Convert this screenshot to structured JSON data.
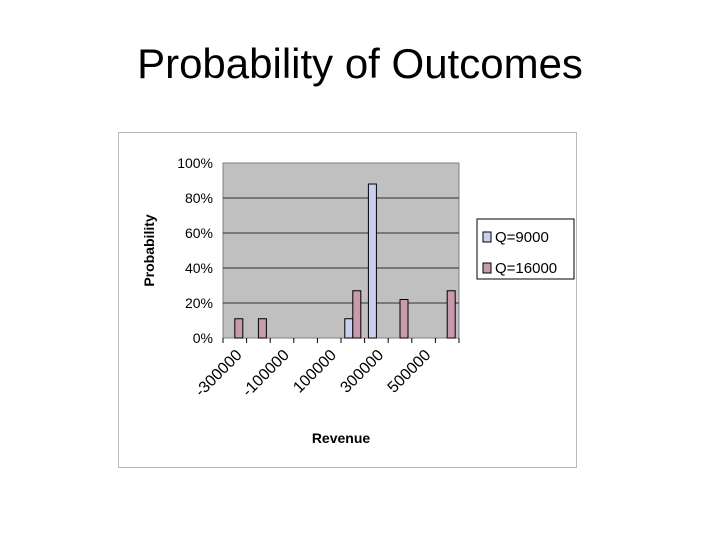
{
  "slide": {
    "title": "Probability of Outcomes"
  },
  "chart_data": {
    "type": "bar",
    "title": "",
    "xlabel": "Revenue",
    "ylabel": "Probability",
    "ylim": [
      0,
      100
    ],
    "yticks": [
      "0%",
      "20%",
      "40%",
      "60%",
      "80%",
      "100%"
    ],
    "categories": [
      "-300000",
      "",
      "-100000",
      "",
      "100000",
      "",
      "300000",
      "",
      "500000",
      ""
    ],
    "series": [
      {
        "name": "Q=9000",
        "color": "#c8d0f0",
        "values": [
          0,
          0,
          0,
          0,
          0,
          11,
          88,
          0,
          0,
          0
        ]
      },
      {
        "name": "Q=16000",
        "color": "#c89aae",
        "values": [
          11,
          11,
          0,
          0,
          0,
          27,
          0,
          22,
          0,
          27
        ]
      }
    ],
    "grid": true,
    "legend": "right",
    "plot_background": "#c0c0c0"
  }
}
